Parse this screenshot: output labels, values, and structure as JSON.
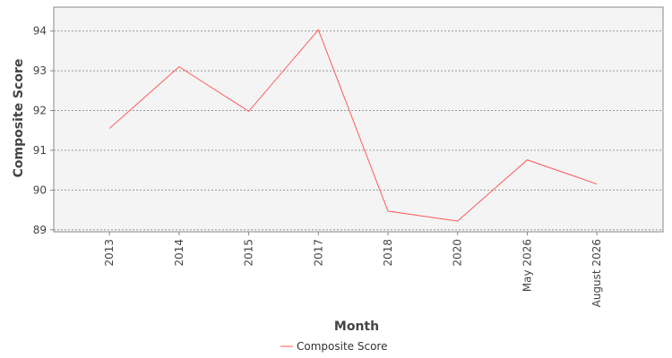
{
  "chart_data": {
    "type": "line",
    "xlabel": "Month",
    "ylabel": "Composite Score",
    "categories": [
      "2013",
      "2014",
      "2015",
      "2017",
      "2018",
      "2020",
      "May 2026",
      "August 2026"
    ],
    "series": [
      {
        "name": "Composite Score",
        "color": "#ff5a5a",
        "values": [
          91.55,
          93.1,
          91.98,
          94.03,
          89.47,
          89.22,
          90.76,
          90.15
        ]
      }
    ],
    "ylim": [
      88.95,
      94.6
    ],
    "yticks": [
      89,
      90,
      91,
      92,
      93,
      94
    ],
    "grid": true,
    "legend_position": "bottom-center",
    "plot_background": "#f4f4f4",
    "grid_color": "#999999"
  }
}
